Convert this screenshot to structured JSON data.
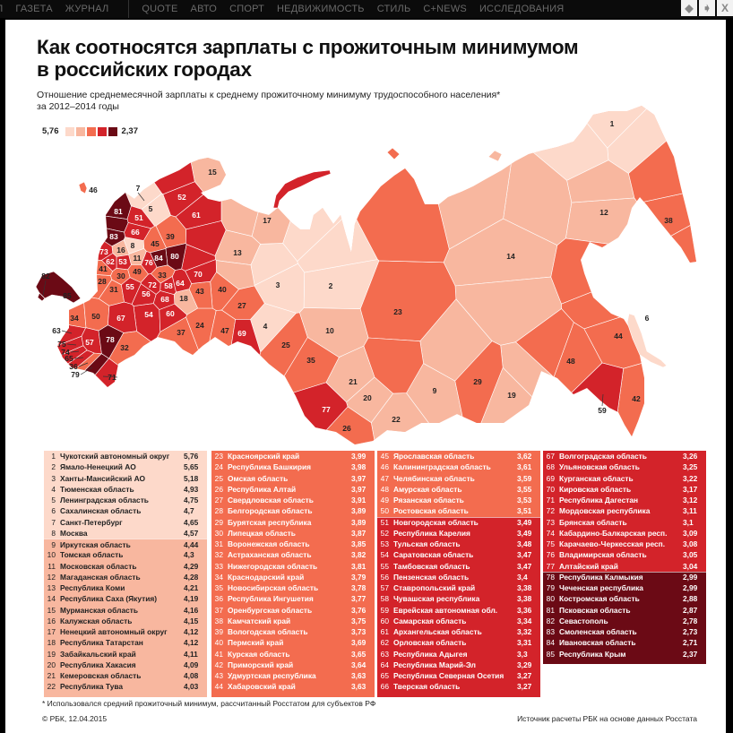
{
  "nav": {
    "items": [
      "Л",
      "ГАЗЕТА",
      "ЖУРНАЛ",
      "QUOTE",
      "АВТО",
      "СПОРТ",
      "НЕДВИЖИМОСТЬ",
      "СТИЛЬ",
      "C+NEWS",
      "ИССЛЕДОВАНИЯ"
    ],
    "buttons": {
      "prev": "◆",
      "next": "➧",
      "close": "X"
    }
  },
  "title_line1": "Как соотносятся зарплаты с прожиточным минимумом",
  "title_line2": "в российских городах",
  "subtitle_line1": "Отношение среднемесячной зарплаты к среднему прожиточному минимуму трудоспособного населения*",
  "subtitle_line2": "за 2012–2014 годы",
  "legend": {
    "max_label": "5,76",
    "min_label": "2,37",
    "colors": [
      "#fdd9ca",
      "#f8b79f",
      "#f36c4f",
      "#d3232a",
      "#6b0a15"
    ]
  },
  "tiers": [
    {
      "from": 1,
      "to": 8,
      "color": "#fdd9ca",
      "text": "#222"
    },
    {
      "from": 9,
      "to": 22,
      "color": "#f8b79f",
      "text": "#222"
    },
    {
      "from": 23,
      "to": 50,
      "color": "#f36c4f",
      "text": "#fff"
    },
    {
      "from": 51,
      "to": 77,
      "color": "#d3232a",
      "text": "#fff"
    },
    {
      "from": 78,
      "to": 85,
      "color": "#6b0a15",
      "text": "#fff"
    }
  ],
  "regions": [
    {
      "rank": "1",
      "name": "Чукотский автономный округ",
      "value": "5,76"
    },
    {
      "rank": "2",
      "name": "Ямало-Ненецкий АО",
      "value": "5,65"
    },
    {
      "rank": "3",
      "name": "Ханты-Мансийский АО",
      "value": "5,18"
    },
    {
      "rank": "4",
      "name": "Тюменская область",
      "value": "4,93"
    },
    {
      "rank": "5",
      "name": "Ленинградская область",
      "value": "4,75"
    },
    {
      "rank": "6",
      "name": "Сахалинская область",
      "value": "4,7"
    },
    {
      "rank": "7",
      "name": "Санкт-Петербург",
      "value": "4,65"
    },
    {
      "rank": "8",
      "name": "Москва",
      "value": "4,57"
    },
    {
      "rank": "9",
      "name": "Иркутская область",
      "value": "4,44"
    },
    {
      "rank": "10",
      "name": "Томская область",
      "value": "4,3"
    },
    {
      "rank": "11",
      "name": "Московская область",
      "value": "4,29"
    },
    {
      "rank": "12",
      "name": "Магаданская область",
      "value": "4,28"
    },
    {
      "rank": "13",
      "name": "Республика Коми",
      "value": "4,21"
    },
    {
      "rank": "14",
      "name": "Республика Саха (Якутия)",
      "value": "4,19"
    },
    {
      "rank": "15",
      "name": "Мурманская область",
      "value": "4,16"
    },
    {
      "rank": "16",
      "name": "Калужская область",
      "value": "4,15"
    },
    {
      "rank": "17",
      "name": "Ненецкий автономный округ",
      "value": "4,12"
    },
    {
      "rank": "18",
      "name": "Республика Татарстан",
      "value": "4,12"
    },
    {
      "rank": "19",
      "name": "Забайкальский край",
      "value": "4,11"
    },
    {
      "rank": "20",
      "name": "Республика Хакасия",
      "value": "4,09"
    },
    {
      "rank": "21",
      "name": "Кемеровская область",
      "value": "4,08"
    },
    {
      "rank": "22",
      "name": "Республика Тува",
      "value": "4,03"
    },
    {
      "rank": "23",
      "name": "Красноярский край",
      "value": "3,99"
    },
    {
      "rank": "24",
      "name": "Республика Башкирия",
      "value": "3,98"
    },
    {
      "rank": "25",
      "name": "Омская область",
      "value": "3,97"
    },
    {
      "rank": "26",
      "name": "Республика Алтай",
      "value": "3,97"
    },
    {
      "rank": "27",
      "name": "Свердловская область",
      "value": "3,91"
    },
    {
      "rank": "28",
      "name": "Белгородская область",
      "value": "3,89"
    },
    {
      "rank": "29",
      "name": "Бурятская республика",
      "value": "3,89"
    },
    {
      "rank": "30",
      "name": "Липецкая область",
      "value": "3,87"
    },
    {
      "rank": "31",
      "name": "Воронежская область",
      "value": "3,85"
    },
    {
      "rank": "32",
      "name": "Астраханская область",
      "value": "3,82"
    },
    {
      "rank": "33",
      "name": "Нижегородская область",
      "value": "3,81"
    },
    {
      "rank": "34",
      "name": "Краснодарский край",
      "value": "3,79"
    },
    {
      "rank": "35",
      "name": "Новосибирская область",
      "value": "3,78"
    },
    {
      "rank": "36",
      "name": "Республика Ингушетия",
      "value": "3,77"
    },
    {
      "rank": "37",
      "name": "Оренбургская область",
      "value": "3,76"
    },
    {
      "rank": "38",
      "name": "Камчатский край",
      "value": "3,75"
    },
    {
      "rank": "39",
      "name": "Вологодская область",
      "value": "3,73"
    },
    {
      "rank": "40",
      "name": "Пермский край",
      "value": "3,69"
    },
    {
      "rank": "41",
      "name": "Курская область",
      "value": "3,65"
    },
    {
      "rank": "42",
      "name": "Приморский край",
      "value": "3,64"
    },
    {
      "rank": "43",
      "name": "Удмуртская республика",
      "value": "3,63"
    },
    {
      "rank": "44",
      "name": "Хабаровский край",
      "value": "3,63"
    },
    {
      "rank": "45",
      "name": "Ярославская область",
      "value": "3,62"
    },
    {
      "rank": "46",
      "name": "Калининградская область",
      "value": "3,61"
    },
    {
      "rank": "47",
      "name": "Челябинская область",
      "value": "3,59"
    },
    {
      "rank": "48",
      "name": "Амурская область",
      "value": "3,55"
    },
    {
      "rank": "49",
      "name": "Рязанская область",
      "value": "3,53"
    },
    {
      "rank": "50",
      "name": "Ростовская область",
      "value": "3,51"
    },
    {
      "rank": "51",
      "name": "Новгородская область",
      "value": "3,49"
    },
    {
      "rank": "52",
      "name": "Республика Карелия",
      "value": "3,49"
    },
    {
      "rank": "53",
      "name": "Тульская область",
      "value": "3,48"
    },
    {
      "rank": "54",
      "name": "Саратовская область",
      "value": "3,47"
    },
    {
      "rank": "55",
      "name": "Тамбовская область",
      "value": "3,47"
    },
    {
      "rank": "56",
      "name": "Пензенская область",
      "value": "3,4"
    },
    {
      "rank": "57",
      "name": "Ставропольский край",
      "value": "3,38"
    },
    {
      "rank": "58",
      "name": "Чувашская республика",
      "value": "3,38"
    },
    {
      "rank": "59",
      "name": "Еврейская автономная обл.",
      "value": "3,36"
    },
    {
      "rank": "60",
      "name": "Самарская область",
      "value": "3,34"
    },
    {
      "rank": "61",
      "name": "Архангельская область",
      "value": "3,32"
    },
    {
      "rank": "62",
      "name": "Орловская область",
      "value": "3,31"
    },
    {
      "rank": "63",
      "name": "Республика Адыгея",
      "value": "3,3"
    },
    {
      "rank": "64",
      "name": "Республика Марий-Эл",
      "value": "3,29"
    },
    {
      "rank": "65",
      "name": "Республика Северная Осетия",
      "value": "3,27"
    },
    {
      "rank": "66",
      "name": "Тверская область",
      "value": "3,27"
    },
    {
      "rank": "67",
      "name": "Волгоградская область",
      "value": "3,26"
    },
    {
      "rank": "68",
      "name": "Ульяновская область",
      "value": "3,25"
    },
    {
      "rank": "69",
      "name": "Курганская область",
      "value": "3,22"
    },
    {
      "rank": "70",
      "name": "Кировская область",
      "value": "3,17"
    },
    {
      "rank": "71",
      "name": "Республика Дагестан",
      "value": "3,12"
    },
    {
      "rank": "72",
      "name": "Мордовская республика",
      "value": "3,11"
    },
    {
      "rank": "73",
      "name": "Брянская область",
      "value": "3,1"
    },
    {
      "rank": "74",
      "name": "Кабардино-Балкарская респ.",
      "value": "3,09"
    },
    {
      "rank": "75",
      "name": "Карачаево-Черкесская респ.",
      "value": "3,08"
    },
    {
      "rank": "76",
      "name": "Владимирская область",
      "value": "3,05"
    },
    {
      "rank": "77",
      "name": "Алтайский край",
      "value": "3,04"
    },
    {
      "rank": "78",
      "name": "Республика Калмыкия",
      "value": "2,99"
    },
    {
      "rank": "79",
      "name": "Чеченская республика",
      "value": "2,99"
    },
    {
      "rank": "80",
      "name": "Костромская область",
      "value": "2,88"
    },
    {
      "rank": "81",
      "name": "Псковская область",
      "value": "2,87"
    },
    {
      "rank": "82",
      "name": "Севастополь",
      "value": "2,78"
    },
    {
      "rank": "83",
      "name": "Смоленская область",
      "value": "2,73"
    },
    {
      "rank": "84",
      "name": "Ивановская область",
      "value": "2,71"
    },
    {
      "rank": "85",
      "name": "Республика Крым",
      "value": "2,37"
    }
  ],
  "footnote": "* Использовался средний прожиточный минимум, рассчитанный Росстатом для субъектов РФ",
  "copyright": "© РБК, 12.04.2015",
  "source": "Источник расчеты РБК на основе данных Росстата"
}
